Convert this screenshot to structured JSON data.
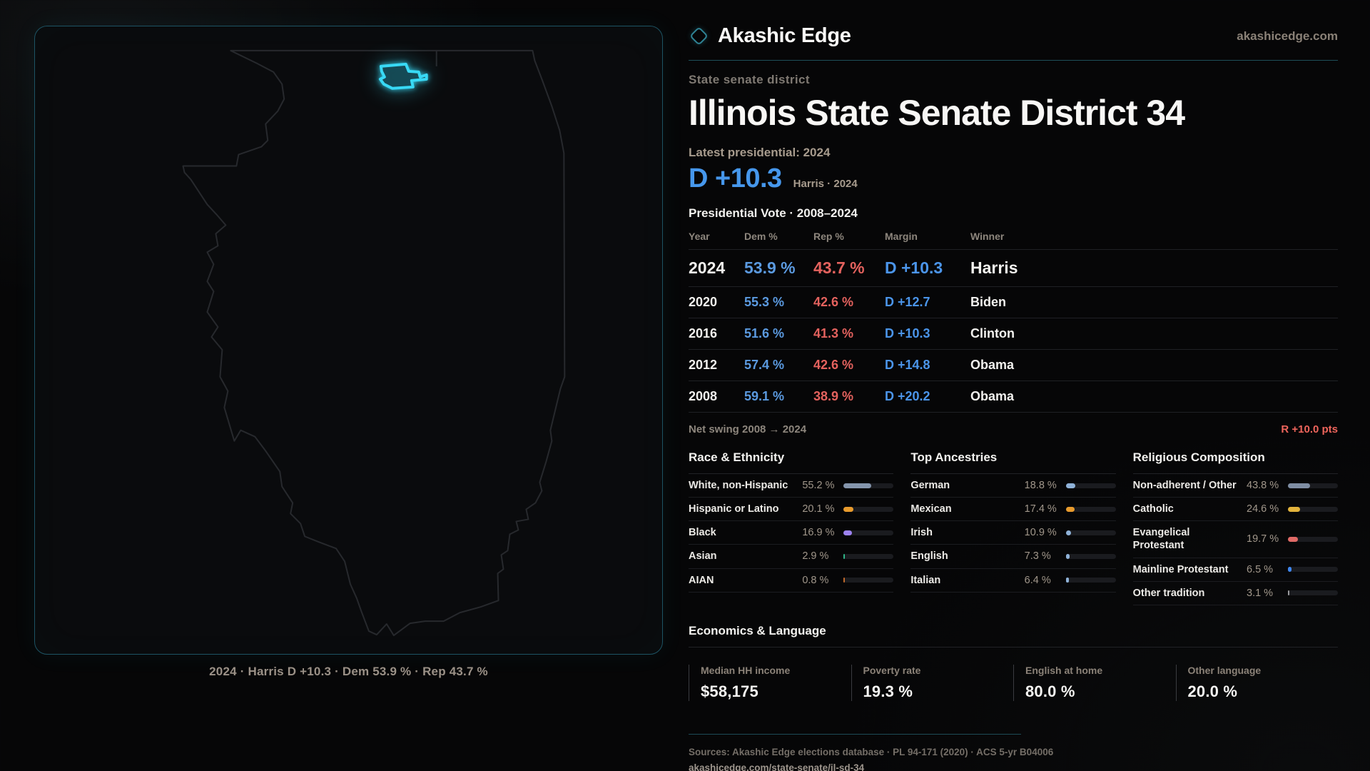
{
  "brand": {
    "name": "Akashic Edge",
    "domain": "akashicedge.com",
    "logo_icon": "diamond-icon",
    "accent_teal": "#2f8496"
  },
  "eyebrow": "State senate district",
  "title": "Illinois State Senate District 34",
  "latest_label": "Latest presidential: 2024",
  "headline": {
    "margin": "D +10.3",
    "context": "Harris · 2024",
    "color": "#4697ec"
  },
  "presidential": {
    "title": "Presidential Vote · 2008–2024",
    "columns": [
      "Year",
      "Dem %",
      "Rep %",
      "Margin",
      "Winner"
    ],
    "dem_color": "#5b9ae0",
    "rep_color": "#e4625e",
    "margin_color": "#4b95ea",
    "rows": [
      {
        "year": "2024",
        "dem": "53.9 %",
        "rep": "43.7 %",
        "margin": "D +10.3",
        "winner": "Harris"
      },
      {
        "year": "2020",
        "dem": "55.3 %",
        "rep": "42.6 %",
        "margin": "D +12.7",
        "winner": "Biden"
      },
      {
        "year": "2016",
        "dem": "51.6 %",
        "rep": "41.3 %",
        "margin": "D +10.3",
        "winner": "Clinton"
      },
      {
        "year": "2012",
        "dem": "57.4 %",
        "rep": "42.6 %",
        "margin": "D +14.8",
        "winner": "Obama"
      },
      {
        "year": "2008",
        "dem": "59.1 %",
        "rep": "38.9 %",
        "margin": "D +20.2",
        "winner": "Obama"
      }
    ]
  },
  "net_swing": {
    "label": "Net swing 2008 → 2024",
    "value": "R +10.0 pts",
    "value_color": "#ef655c"
  },
  "sections": [
    {
      "title": "Race & Ethnicity",
      "rows": [
        {
          "label": "White, non-Hispanic",
          "value": "55.2 %",
          "pct": 55.2,
          "color": "#8495ac"
        },
        {
          "label": "Hispanic or Latino",
          "value": "20.1 %",
          "pct": 20.1,
          "color": "#e89b2d"
        },
        {
          "label": "Black",
          "value": "16.9 %",
          "pct": 16.9,
          "color": "#9c82f0"
        },
        {
          "label": "Asian",
          "value": "2.9 %",
          "pct": 2.9,
          "color": "#2eb487"
        },
        {
          "label": "AIAN",
          "value": "0.8 %",
          "pct": 0.8,
          "color": "#c06a2b"
        }
      ]
    },
    {
      "title": "Top Ancestries",
      "rows": [
        {
          "label": "German",
          "value": "18.8 %",
          "pct": 18.8,
          "color": "#8fb2d8"
        },
        {
          "label": "Mexican",
          "value": "17.4 %",
          "pct": 17.4,
          "color": "#e89b2d"
        },
        {
          "label": "Irish",
          "value": "10.9 %",
          "pct": 10.9,
          "color": "#8fb2d8"
        },
        {
          "label": "English",
          "value": "7.3 %",
          "pct": 7.3,
          "color": "#8fb2d8"
        },
        {
          "label": "Italian",
          "value": "6.4 %",
          "pct": 6.4,
          "color": "#8fb2d8"
        }
      ]
    },
    {
      "title": "Religious Composition",
      "rows": [
        {
          "label": "Non-adherent / Other",
          "value": "43.8 %",
          "pct": 43.8,
          "color": "#7e8da3"
        },
        {
          "label": "Catholic",
          "value": "24.6 %",
          "pct": 24.6,
          "color": "#e2b33c"
        },
        {
          "label": "Evangelical Protestant",
          "value": "19.7 %",
          "pct": 19.7,
          "color": "#e06a66"
        },
        {
          "label": "Mainline Protestant",
          "value": "6.5 %",
          "pct": 6.5,
          "color": "#3f87ef"
        },
        {
          "label": "Other tradition",
          "value": "3.1 %",
          "pct": 3.1,
          "color": "#9a9a9e"
        }
      ]
    }
  ],
  "economics": {
    "title": "Economics & Language",
    "stats": [
      {
        "label": "Median HH income",
        "value": "$58,175"
      },
      {
        "label": "Poverty rate",
        "value": "19.3 %"
      },
      {
        "label": "English at home",
        "value": "80.0 %"
      },
      {
        "label": "Other language",
        "value": "20.0 %"
      }
    ]
  },
  "map": {
    "caption": "2024 · Harris D +10.3 · Dem 53.9 % · Rep 43.7 %",
    "district_color": "#38d9f5",
    "outline_color": "#27292d"
  },
  "footer": {
    "sources": "Sources: Akashic Edge elections database · PL 94-171 (2020) · ACS 5-yr B04006",
    "url": "akashicedge.com/state-senate/il-sd-34"
  }
}
